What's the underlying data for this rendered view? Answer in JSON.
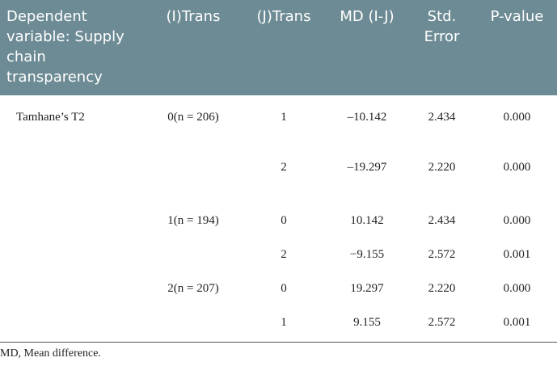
{
  "table": {
    "header": [
      "Dependent variable: Supply chain transparency",
      "(I)Trans",
      "(J)Trans",
      "MD (I-J)",
      "Std. Error",
      "P-value"
    ],
    "rows": [
      [
        "Tamhane’s T2",
        "0(n = 206)",
        "1",
        "–10.142",
        "2.434",
        "0.000"
      ],
      [
        null,
        null,
        "2",
        "–19.297",
        "2.220",
        "0.000"
      ],
      [
        null,
        "1(n = 194)",
        "0",
        "10.142",
        "2.434",
        "0.000"
      ],
      [
        null,
        null,
        "2",
        "−9.155",
        "2.572",
        "0.001"
      ],
      [
        null,
        "2(n = 207)",
        "0",
        "19.297",
        "2.220",
        "0.000"
      ],
      [
        null,
        null,
        "1",
        "9.155",
        "2.572",
        "0.001"
      ]
    ]
  },
  "footnote": "MD, Mean difference."
}
